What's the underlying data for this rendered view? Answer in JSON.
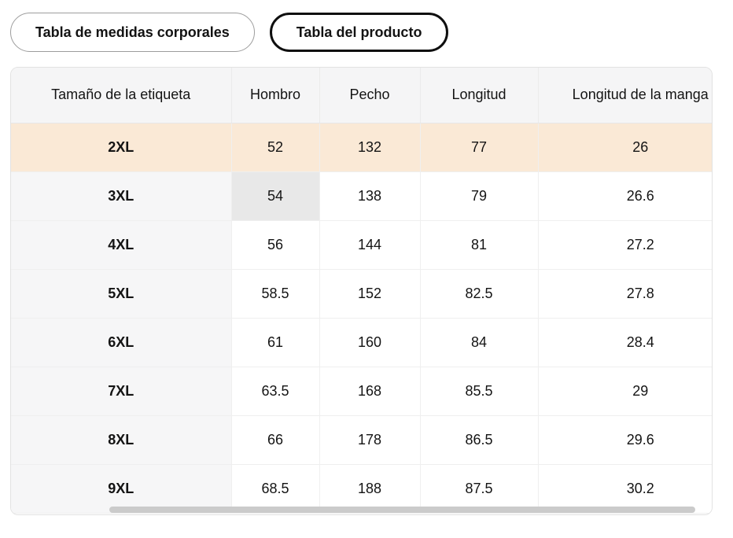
{
  "tabs": {
    "body_measurements_label": "Tabla de medidas corporales",
    "product_label": "Tabla del producto",
    "selected": "Tabla del producto"
  },
  "size_table": {
    "columns": [
      "Tamaño de la etiqueta",
      "Hombro",
      "Pecho",
      "Longitud",
      "Longitud de la manga"
    ],
    "rows": [
      {
        "size": "2XL",
        "values": [
          "52",
          "132",
          "77",
          "26"
        ]
      },
      {
        "size": "3XL",
        "values": [
          "54",
          "138",
          "79",
          "26.6"
        ]
      },
      {
        "size": "4XL",
        "values": [
          "56",
          "144",
          "81",
          "27.2"
        ]
      },
      {
        "size": "5XL",
        "values": [
          "58.5",
          "152",
          "82.5",
          "27.8"
        ]
      },
      {
        "size": "6XL",
        "values": [
          "61",
          "160",
          "84",
          "28.4"
        ]
      },
      {
        "size": "7XL",
        "values": [
          "63.5",
          "168",
          "85.5",
          "29"
        ]
      },
      {
        "size": "8XL",
        "values": [
          "66",
          "178",
          "86.5",
          "29.6"
        ]
      },
      {
        "size": "9XL",
        "values": [
          "68.5",
          "188",
          "87.5",
          "30.2"
        ]
      }
    ],
    "highlighted_row": "2XL",
    "highlighted_cell": {
      "row": "3XL",
      "column": "Hombro"
    }
  },
  "colors": {
    "row_highlight": "#FAE9D6",
    "cell_highlight": "#E8E8E8",
    "header_bg": "#F5F5F6",
    "size_col_bg": "#F6F6F7",
    "selected_tab_border": "#0F0F0F",
    "unselected_tab_border": "#9D9D9D",
    "scrollbar_thumb": "#CBCBCB"
  }
}
